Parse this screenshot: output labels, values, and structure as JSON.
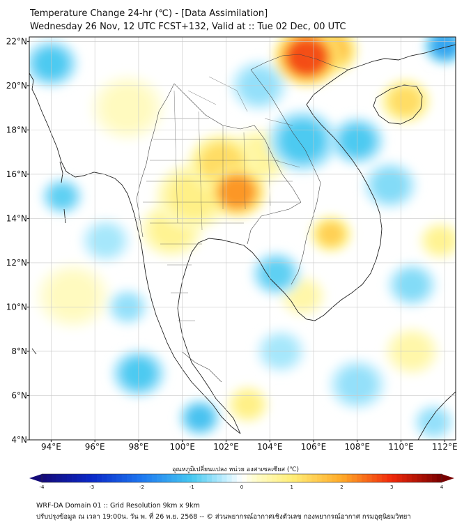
{
  "header": {
    "title": "Temperature Change 24-hr (℃) - [Data Assimilation]",
    "subtitle": "Wednesday 26 Nov, 12 UTC FCST+132, Valid at :: Tue 02 Dec, 00 UTC"
  },
  "map": {
    "lat_labels": [
      "22°N",
      "20°N",
      "18°N",
      "16°N",
      "14°N",
      "12°N",
      "10°N",
      "8°N",
      "6°N",
      "4°N"
    ],
    "lon_labels": [
      "94°E",
      "96°E",
      "98°E",
      "100°E",
      "102°E",
      "104°E",
      "106°E",
      "108°E",
      "110°E",
      "112°E"
    ],
    "lat_range": [
      4,
      22.2
    ],
    "lon_range": [
      93,
      112.5
    ],
    "anomalies": [
      {
        "lon": 105.7,
        "lat": 21.3,
        "value": 2.8,
        "r": 1.6
      },
      {
        "lon": 106.8,
        "lat": 21.6,
        "value": 1.8,
        "r": 1.3
      },
      {
        "lon": 102.5,
        "lat": 15.2,
        "value": 2.2,
        "r": 1.4
      },
      {
        "lon": 101.8,
        "lat": 16.5,
        "value": 1.3,
        "r": 1.6
      },
      {
        "lon": 100.5,
        "lat": 15.0,
        "value": 0.9,
        "r": 1.8
      },
      {
        "lon": 103.5,
        "lat": 16.8,
        "value": 0.7,
        "r": 1.5
      },
      {
        "lon": 106.8,
        "lat": 13.3,
        "value": 1.5,
        "r": 1.0
      },
      {
        "lon": 110.2,
        "lat": 19.3,
        "value": 1.3,
        "r": 1.2
      },
      {
        "lon": 99.5,
        "lat": 13.5,
        "value": 0.8,
        "r": 1.5
      },
      {
        "lon": 111.8,
        "lat": 13.0,
        "value": 0.8,
        "r": 1.0
      },
      {
        "lon": 105.5,
        "lat": 10.5,
        "value": 0.6,
        "r": 1.1
      },
      {
        "lon": 103.0,
        "lat": 5.6,
        "value": 0.9,
        "r": 1.0
      },
      {
        "lon": 110.5,
        "lat": 8.0,
        "value": 0.6,
        "r": 1.3
      },
      {
        "lon": 97.5,
        "lat": 19.0,
        "value": 0.4,
        "r": 1.8
      },
      {
        "lon": 95.0,
        "lat": 10.5,
        "value": 0.4,
        "r": 1.8
      },
      {
        "lon": 112.0,
        "lat": 21.8,
        "value": -1.5,
        "r": 1.0
      },
      {
        "lon": 94.0,
        "lat": 21.0,
        "value": -1.0,
        "r": 1.3
      },
      {
        "lon": 94.5,
        "lat": 15.0,
        "value": -0.9,
        "r": 1.0
      },
      {
        "lon": 98.0,
        "lat": 7.0,
        "value": -1.0,
        "r": 1.3
      },
      {
        "lon": 100.8,
        "lat": 5.0,
        "value": -1.1,
        "r": 1.0
      },
      {
        "lon": 105.5,
        "lat": 17.5,
        "value": -1.0,
        "r": 1.7
      },
      {
        "lon": 108.0,
        "lat": 17.5,
        "value": -1.0,
        "r": 1.3
      },
      {
        "lon": 104.3,
        "lat": 11.5,
        "value": -0.9,
        "r": 1.2
      },
      {
        "lon": 109.5,
        "lat": 15.5,
        "value": -0.7,
        "r": 1.3
      },
      {
        "lon": 110.5,
        "lat": 11.0,
        "value": -0.7,
        "r": 1.2
      },
      {
        "lon": 108.0,
        "lat": 6.5,
        "value": -0.6,
        "r": 1.4
      },
      {
        "lon": 111.5,
        "lat": 4.8,
        "value": -0.6,
        "r": 1.0
      },
      {
        "lon": 97.5,
        "lat": 10.0,
        "value": -0.6,
        "r": 1.0
      },
      {
        "lon": 104.5,
        "lat": 8.0,
        "value": -0.5,
        "r": 1.2
      },
      {
        "lon": 96.5,
        "lat": 13.0,
        "value": -0.5,
        "r": 1.2
      },
      {
        "lon": 103.5,
        "lat": 20.0,
        "value": -0.6,
        "r": 1.4
      }
    ]
  },
  "colorbar": {
    "label": "อุณหภูมิเปลี่ยนแปลง หน่วย องศาเซลเซียส (℃)",
    "ticks": [
      "-4",
      "-3",
      "-2",
      "-1",
      "0",
      "1",
      "2",
      "3",
      "4"
    ],
    "min": -4,
    "max": 4
  },
  "footer": {
    "line1": "WRF-DA Domain 01 :: Grid Resolution 9km x 9km",
    "line2": "ปรับปรุงข้อมูล ณ เวลา 19:00น. วัน พ. ที่ 26 พ.ย. 2568 -- © ส่วนพยากรณ์อากาศเชิงตัวเลข กองพยากรณ์อากาศ กรมอุตุนิยมวิทยา"
  }
}
